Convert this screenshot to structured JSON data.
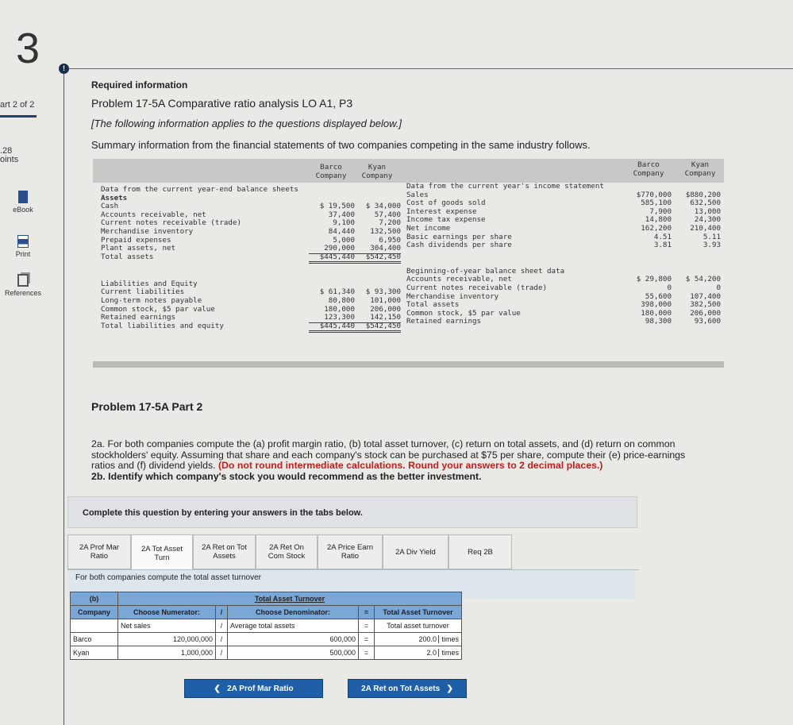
{
  "sidebar": {
    "question_number": "3",
    "part": "art 2 of 2",
    "points_value": ".28",
    "points_label": "oints",
    "items": [
      {
        "label": "eBook",
        "icon": "book-icon"
      },
      {
        "label": "Print",
        "icon": "printer-icon"
      },
      {
        "label": "References",
        "icon": "documents-icon"
      }
    ]
  },
  "header": {
    "required_info": "Required information",
    "problem_title": "Problem 17-5A Comparative ratio analysis LO A1, P3",
    "note": "[The following information applies to the questions displayed below.]",
    "summary": "Summary information from the financial statements of two companies competing in the same industry follows."
  },
  "balance_sheet": {
    "col1": "Barco",
    "col1b": "Company",
    "col2": "Kyan",
    "col2b": "Company",
    "title": "Data from the current year-end balance sheets",
    "assets_label": "Assets",
    "assets": [
      {
        "label": "Cash",
        "barco": "$ 19,500",
        "kyan": "$ 34,000"
      },
      {
        "label": "Accounts receivable, net",
        "barco": "37,400",
        "kyan": "57,400"
      },
      {
        "label": "Current notes receivable (trade)",
        "barco": "9,100",
        "kyan": "7,200"
      },
      {
        "label": "Merchandise inventory",
        "barco": "84,440",
        "kyan": "132,500"
      },
      {
        "label": "Prepaid expenses",
        "barco": "5,000",
        "kyan": "6,950"
      },
      {
        "label": "Plant assets, net",
        "barco": "290,000",
        "kyan": "304,400"
      }
    ],
    "total_assets": {
      "label": "Total assets",
      "barco": "$445,440",
      "kyan": "$542,450"
    },
    "liab_label": "Liabilities and Equity",
    "liabilities": [
      {
        "label": "Current liabilities",
        "barco": "$ 61,340",
        "kyan": "$ 93,300"
      },
      {
        "label": "Long-term notes payable",
        "barco": "80,800",
        "kyan": "101,000"
      },
      {
        "label": "Common stock, $5 par value",
        "barco": "180,000",
        "kyan": "206,000"
      },
      {
        "label": "Retained earnings",
        "barco": "123,300",
        "kyan": "142,150"
      }
    ],
    "total_liab": {
      "label": "Total liabilities and equity",
      "barco": "$445,440",
      "kyan": "$542,450"
    }
  },
  "income": {
    "col1": "Barco",
    "col1b": "Company",
    "col2": "Kyan",
    "col2b": "Company",
    "title": "Data from the current year's income statement",
    "rows": [
      {
        "label": "Sales",
        "barco": "$770,000",
        "kyan": "$880,200"
      },
      {
        "label": "Cost of goods sold",
        "barco": "585,100",
        "kyan": "632,500"
      },
      {
        "label": "Interest expense",
        "barco": "7,900",
        "kyan": "13,000"
      },
      {
        "label": "Income tax expense",
        "barco": "14,800",
        "kyan": "24,300"
      },
      {
        "label": "Net income",
        "barco": "162,200",
        "kyan": "210,400"
      },
      {
        "label": "Basic earnings per share",
        "barco": "4.51",
        "kyan": "5.11"
      },
      {
        "label": "Cash dividends per share",
        "barco": "3.81",
        "kyan": "3.93"
      }
    ],
    "boy_title": "Beginning-of-year balance sheet data",
    "boy": [
      {
        "label": "Accounts receivable, net",
        "barco": "$ 29,800",
        "kyan": "$ 54,200"
      },
      {
        "label": "Current notes receivable (trade)",
        "barco": "0",
        "kyan": "0"
      },
      {
        "label": "Merchandise inventory",
        "barco": "55,600",
        "kyan": "107,400"
      },
      {
        "label": "Total assets",
        "barco": "398,000",
        "kyan": "382,500"
      },
      {
        "label": "Common stock, $5 par value",
        "barco": "180,000",
        "kyan": "206,000"
      },
      {
        "label": "Retained earnings",
        "barco": "98,300",
        "kyan": "93,600"
      }
    ]
  },
  "part2": {
    "title": "Problem 17-5A Part 2",
    "instr_a": "2a. For both companies compute the (a) profit margin ratio, (b) total asset turnover, (c) return on total assets, and (d) return on common stockholders' equity. Assuming that share and each company's stock can be purchased at $75 per share, compute their (e) price-earnings ratios and (f) dividend yields. ",
    "instr_red": "(Do not round intermediate calculations. Round your answers to 2 decimal places.)",
    "instr_b": "2b. Identify which company's stock you would recommend as the better investment."
  },
  "question_box": "Complete this question by entering your answers in the tabs below.",
  "tabs": [
    {
      "l1": "2A Prof Mar",
      "l2": "Ratio"
    },
    {
      "l1": "2A Tot Asset",
      "l2": "Turn"
    },
    {
      "l1": "2A Ret on Tot",
      "l2": "Assets"
    },
    {
      "l1": "2A Ret On",
      "l2": "Com Stock"
    },
    {
      "l1": "2A Price Earn",
      "l2": "Ratio"
    },
    {
      "l1": "2A Div Yield",
      "l2": ""
    },
    {
      "l1": "Req 2B",
      "l2": ""
    }
  ],
  "active_tab": 1,
  "subprompt": "For both companies compute the total asset turnover",
  "ratio_table": {
    "part": "(b)",
    "title": "Total Asset Turnover",
    "company_hdr": "Company",
    "num_hdr": "Choose Numerator:",
    "div": "/",
    "den_hdr": "Choose Denominator:",
    "eq": "=",
    "res_hdr": "Total Asset Turnover",
    "num_label": "Net sales",
    "den_label": "Average total assets",
    "res_label": "Total asset turnover",
    "rows": [
      {
        "company": "Barco",
        "numerator": "120,000,000",
        "denominator": "600,000",
        "result": "200.0",
        "unit": "times"
      },
      {
        "company": "Kyan",
        "numerator": "1,000,000",
        "denominator": "500,000",
        "result": "2.0",
        "unit": "times"
      }
    ]
  },
  "nav": {
    "prev": "2A Prof Mar Ratio",
    "next": "2A Ret on Tot Assets",
    "prev_icon": "chevron-left-icon",
    "next_icon": "chevron-right-icon"
  },
  "colors": {
    "accent": "#1f5fa8",
    "table_header": "#7aa7d6",
    "alert": "#c2201f"
  }
}
